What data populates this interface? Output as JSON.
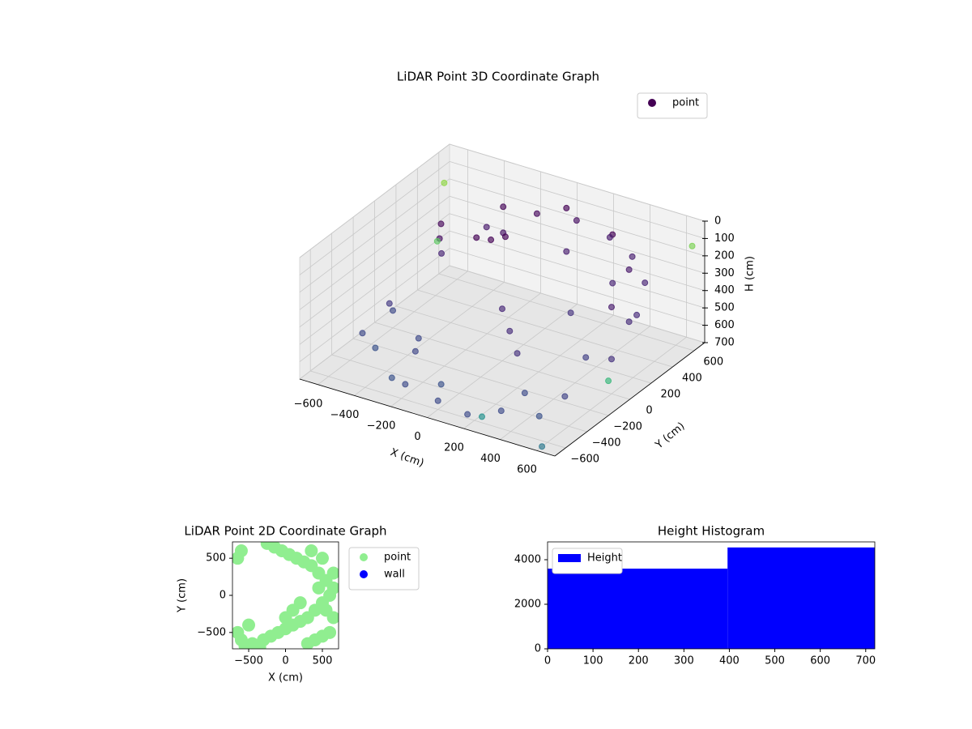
{
  "chart_data": [
    {
      "type": "scatter3d",
      "title": "LiDAR Point 3D Coordinate Graph",
      "xlabel": "X (cm)",
      "ylabel": "Y (cm)",
      "zlabel": "H (cm)",
      "xlim": [
        -700,
        700
      ],
      "ylim": [
        -700,
        700
      ],
      "zlim": [
        700,
        0
      ],
      "xticks": [
        {
          "value": -600,
          "label": "−600"
        },
        {
          "value": -400,
          "label": "−400"
        },
        {
          "value": -200,
          "label": "−200"
        },
        0,
        200,
        400,
        600
      ],
      "yticks": [
        {
          "value": -600,
          "label": "−600"
        },
        {
          "value": -400,
          "label": "−400"
        },
        {
          "value": -200,
          "label": "−200"
        },
        0,
        200,
        400,
        600
      ],
      "zticks": [
        0,
        100,
        200,
        300,
        400,
        500,
        600,
        700
      ],
      "legend": "upper right",
      "grid": true,
      "series": [
        {
          "name": "point",
          "color": "#440154",
          "x": [
            600,
            520,
            300,
            0,
            -300,
            -520,
            -600,
            -520,
            -300,
            0,
            300,
            520,
            600,
            520,
            300,
            0,
            -300,
            -500,
            -200,
            -150,
            -100,
            0,
            100,
            200,
            -300,
            300,
            -400,
            400,
            200,
            -100,
            650,
            560,
            420,
            250,
            50,
            -150,
            -350,
            -480,
            -560,
            -620,
            450,
            150,
            -250,
            -700,
            -650,
            690,
            700,
            600,
            300
          ],
          "y": [
            0,
            300,
            520,
            600,
            520,
            300,
            0,
            -300,
            -520,
            -600,
            -520,
            -300,
            0,
            300,
            520,
            600,
            520,
            280,
            100,
            150,
            200,
            0,
            -100,
            -200,
            -300,
            -300,
            -100,
            100,
            300,
            -400,
            150,
            380,
            500,
            580,
            610,
            580,
            450,
            250,
            -100,
            -250,
            -420,
            -580,
            -480,
            650,
            500,
            600,
            -200,
            -650,
            -700
          ],
          "z": [
            500,
            450,
            400,
            350,
            300,
            300,
            600,
            650,
            650,
            650,
            650,
            600,
            200,
            150,
            120,
            100,
            150,
            200,
            100,
            120,
            110,
            400,
            450,
            500,
            600,
            650,
            650,
            600,
            500,
            680,
            300,
            250,
            200,
            180,
            160,
            170,
            250,
            350,
            500,
            620,
            680,
            690,
            690,
            200,
            450,
            100,
            500,
            700,
            600
          ],
          "colors": [
            "#46337e",
            "#472c7a",
            "#482475",
            "#481d6f",
            "#471365",
            "#470e61",
            "#3e4989",
            "#3b528b",
            "#3b528b",
            "#3e4c8a",
            "#3e4c8a",
            "#414487",
            "#481b6d",
            "#48186a",
            "#440154",
            "#440154",
            "#450457",
            "#46075a",
            "#440154",
            "#440154",
            "#440154",
            "#482878",
            "#472d7b",
            "#46327e",
            "#3f4788",
            "#3e4c8a",
            "#3e4989",
            "#424186",
            "#463480",
            "#3b518b",
            "#472a7a",
            "#482475",
            "#481f70",
            "#481b6d",
            "#471063",
            "#46085c",
            "#481a6c",
            "#482576",
            "#443983",
            "#3e4989",
            "#3b528b",
            "#3e4c8a",
            "#3e4c8a",
            "#8fd744",
            "#5ec962",
            "#7ad151",
            "#35b779",
            "#2a788e",
            "#21918c"
          ]
        }
      ]
    },
    {
      "type": "scatter",
      "title": "LiDAR Point 2D Coordinate Graph",
      "xlabel": "X (cm)",
      "ylabel": "Y (cm)",
      "xlim": [
        -720,
        720
      ],
      "ylim": [
        -720,
        720
      ],
      "xticks": [
        {
          "value": -500,
          "label": "−500"
        },
        0,
        500
      ],
      "yticks": [
        {
          "value": -500,
          "label": "−500"
        },
        0,
        500
      ],
      "legend": "outside right",
      "series": [
        {
          "name": "point",
          "color": "#90ee90",
          "x": [
            -650,
            -600,
            -550,
            -450,
            -300,
            -200,
            -100,
            0,
            100,
            200,
            300,
            400,
            500,
            600,
            650,
            550,
            450,
            350,
            250,
            150,
            50,
            -50,
            -150,
            -250,
            -350,
            -450,
            -500,
            300,
            400,
            500,
            600,
            650,
            550,
            450,
            200,
            100,
            0,
            -600,
            -650,
            350,
            500,
            650
          ],
          "y": [
            -500,
            -600,
            -680,
            -650,
            -600,
            -550,
            -500,
            -450,
            -400,
            -350,
            -300,
            -200,
            -100,
            0,
            100,
            200,
            300,
            400,
            450,
            500,
            550,
            600,
            650,
            700,
            -700,
            -700,
            -400,
            -650,
            -600,
            -550,
            -500,
            -300,
            -200,
            100,
            -100,
            -200,
            -300,
            600,
            500,
            600,
            500,
            300
          ]
        },
        {
          "name": "wall",
          "color": "#0000ff",
          "x": [],
          "y": []
        }
      ]
    },
    {
      "type": "histogram",
      "title": "Height Histogram",
      "bins": [
        0,
        396,
        720
      ],
      "xlim": [
        0,
        720
      ],
      "ylim": [
        0,
        4800
      ],
      "xticks": [
        0,
        100,
        200,
        300,
        400,
        500,
        600,
        700
      ],
      "yticks": [
        0,
        2000,
        4000
      ],
      "legend": "upper left",
      "series": [
        {
          "name": "Height",
          "color": "#0000ff",
          "values": [
            3600,
            4550
          ]
        }
      ]
    }
  ]
}
